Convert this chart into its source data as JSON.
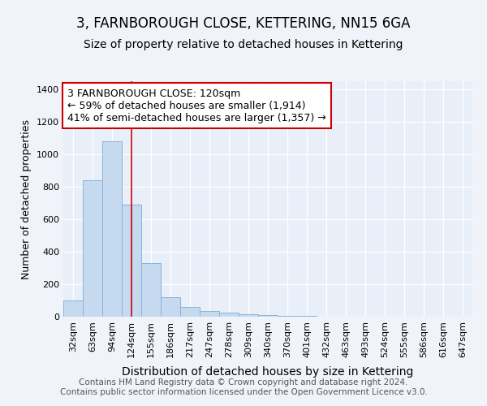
{
  "title": "3, FARNBOROUGH CLOSE, KETTERING, NN15 6GA",
  "subtitle": "Size of property relative to detached houses in Kettering",
  "xlabel": "Distribution of detached houses by size in Kettering",
  "ylabel": "Number of detached properties",
  "categories": [
    "32sqm",
    "63sqm",
    "94sqm",
    "124sqm",
    "155sqm",
    "186sqm",
    "217sqm",
    "247sqm",
    "278sqm",
    "309sqm",
    "340sqm",
    "370sqm",
    "401sqm",
    "432sqm",
    "463sqm",
    "493sqm",
    "524sqm",
    "555sqm",
    "586sqm",
    "616sqm",
    "647sqm"
  ],
  "values": [
    100,
    840,
    1080,
    690,
    330,
    120,
    60,
    35,
    25,
    15,
    10,
    5,
    5,
    0,
    0,
    0,
    0,
    0,
    0,
    0,
    0
  ],
  "bar_color": "#c5d9ef",
  "bar_edge_color": "#8ab4d8",
  "vline_x": 3.0,
  "vline_color": "#cc0000",
  "annotation_text": "3 FARNBOROUGH CLOSE: 120sqm\n← 59% of detached houses are smaller (1,914)\n41% of semi-detached houses are larger (1,357) →",
  "annotation_box_color": "#ffffff",
  "annotation_box_edge": "#cc0000",
  "ylim": [
    0,
    1450
  ],
  "yticks": [
    0,
    200,
    400,
    600,
    800,
    1000,
    1200,
    1400
  ],
  "bg_color": "#f0f4fa",
  "plot_bg_color": "#e8eff8",
  "footer": "Contains HM Land Registry data © Crown copyright and database right 2024.\nContains public sector information licensed under the Open Government Licence v3.0.",
  "title_fontsize": 12,
  "subtitle_fontsize": 10,
  "xlabel_fontsize": 10,
  "ylabel_fontsize": 9,
  "tick_fontsize": 8,
  "footer_fontsize": 7.5,
  "annot_fontsize": 9
}
